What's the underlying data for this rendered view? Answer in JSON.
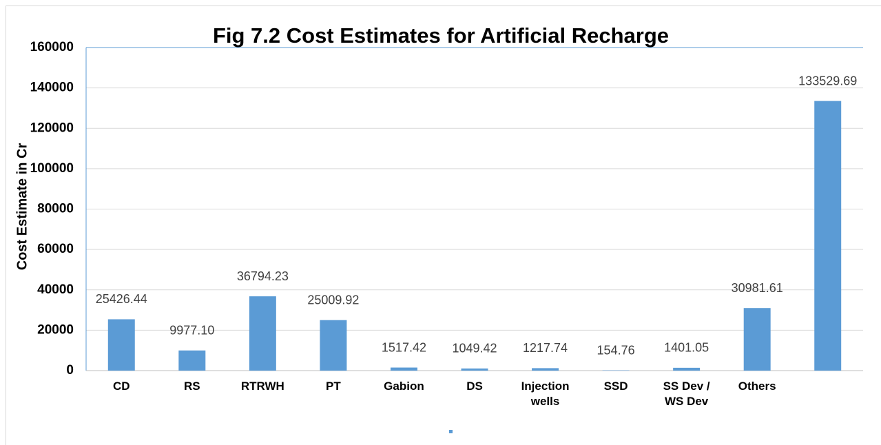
{
  "chart_data": {
    "type": "bar",
    "title": "Fig 7.2 Cost Estimates for Artificial Recharge",
    "y_label": "Cost Estimate in Cr",
    "categories": [
      "CD",
      "RS",
      "RTRWH",
      "PT",
      "Gabion",
      "DS",
      "Injection wells",
      "SSD",
      "SS Dev / WS Dev",
      "Others",
      null
    ],
    "values": [
      25426.44,
      9977.1,
      36794.23,
      25009.92,
      1517.42,
      1049.42,
      1217.74,
      154.76,
      1401.05,
      30981.61,
      133529.69
    ],
    "value_labels": [
      "25426.44",
      "9977.10",
      "36794.23",
      "25009.92",
      "1517.42",
      "1049.42",
      "1217.74",
      "154.76",
      "1401.05",
      "30981.61",
      "133529.69"
    ],
    "color": "#5b9bd5",
    "ylim": [
      0,
      160000
    ],
    "yticks": [
      0,
      20000,
      40000,
      60000,
      80000,
      100000,
      120000,
      140000,
      160000
    ],
    "grid": true
  }
}
